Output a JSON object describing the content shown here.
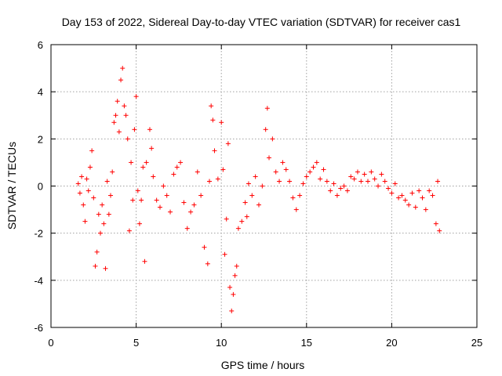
{
  "chart_data": {
    "type": "scatter",
    "title": "Day 153 of 2022, Sidereal Day-to-day VTEC variation (SDTVAR) for receiver cas1",
    "xlabel": "GPS time / hours",
    "ylabel": "SDTVAR / TECUs",
    "xlim": [
      0,
      25
    ],
    "ylim": [
      -6,
      6
    ],
    "x_ticks": [
      0,
      5,
      10,
      15,
      20,
      25
    ],
    "y_ticks": [
      -6,
      -4,
      -2,
      0,
      2,
      4,
      6
    ],
    "x_tick_labels": [
      "0",
      "5",
      "10",
      "15",
      "20",
      "25"
    ],
    "y_tick_labels": [
      "-6",
      "-4",
      "-2",
      "0",
      "2",
      "4",
      "6"
    ],
    "grid": true,
    "marker": "+",
    "color": "#ff0000",
    "series": [
      {
        "name": "SDTVAR",
        "points": [
          [
            1.6,
            0.1
          ],
          [
            1.7,
            -0.3
          ],
          [
            1.8,
            0.4
          ],
          [
            1.9,
            -0.8
          ],
          [
            2.0,
            -1.5
          ],
          [
            2.1,
            0.3
          ],
          [
            2.2,
            -0.2
          ],
          [
            2.3,
            0.8
          ],
          [
            2.4,
            1.5
          ],
          [
            2.5,
            -0.5
          ],
          [
            2.6,
            -3.4
          ],
          [
            2.7,
            -2.8
          ],
          [
            2.8,
            -1.2
          ],
          [
            2.9,
            -2.0
          ],
          [
            3.0,
            -0.8
          ],
          [
            3.1,
            -1.6
          ],
          [
            3.2,
            -3.5
          ],
          [
            3.3,
            0.2
          ],
          [
            3.4,
            -1.2
          ],
          [
            3.5,
            -0.4
          ],
          [
            3.6,
            0.6
          ],
          [
            3.7,
            2.7
          ],
          [
            3.8,
            3.0
          ],
          [
            3.9,
            3.6
          ],
          [
            4.0,
            2.3
          ],
          [
            4.1,
            4.5
          ],
          [
            4.2,
            5.0
          ],
          [
            4.3,
            3.4
          ],
          [
            4.4,
            3.0
          ],
          [
            4.5,
            2.0
          ],
          [
            4.6,
            -1.9
          ],
          [
            4.7,
            1.0
          ],
          [
            4.8,
            -0.6
          ],
          [
            4.9,
            2.4
          ],
          [
            5.0,
            3.8
          ],
          [
            5.1,
            -0.2
          ],
          [
            5.2,
            -1.6
          ],
          [
            5.3,
            -0.6
          ],
          [
            5.4,
            0.8
          ],
          [
            5.5,
            -3.2
          ],
          [
            5.6,
            1.0
          ],
          [
            5.8,
            2.4
          ],
          [
            5.9,
            1.6
          ],
          [
            6.0,
            0.4
          ],
          [
            6.2,
            -0.6
          ],
          [
            6.4,
            -0.9
          ],
          [
            6.6,
            0.0
          ],
          [
            6.8,
            -0.4
          ],
          [
            7.0,
            -1.1
          ],
          [
            7.2,
            0.5
          ],
          [
            7.4,
            0.8
          ],
          [
            7.6,
            1.0
          ],
          [
            7.8,
            -0.7
          ],
          [
            8.0,
            -1.8
          ],
          [
            8.2,
            -1.1
          ],
          [
            8.4,
            -0.8
          ],
          [
            8.6,
            0.6
          ],
          [
            8.8,
            -0.4
          ],
          [
            9.0,
            -2.6
          ],
          [
            9.2,
            -3.3
          ],
          [
            9.3,
            0.2
          ],
          [
            9.4,
            3.4
          ],
          [
            9.5,
            2.8
          ],
          [
            9.6,
            1.5
          ],
          [
            9.8,
            0.3
          ],
          [
            10.0,
            2.7
          ],
          [
            10.1,
            0.7
          ],
          [
            10.2,
            -2.9
          ],
          [
            10.3,
            -1.4
          ],
          [
            10.4,
            1.8
          ],
          [
            10.5,
            -4.3
          ],
          [
            10.6,
            -5.3
          ],
          [
            10.7,
            -4.6
          ],
          [
            10.8,
            -3.8
          ],
          [
            10.9,
            -3.4
          ],
          [
            11.0,
            -1.8
          ],
          [
            11.2,
            -1.5
          ],
          [
            11.4,
            -0.7
          ],
          [
            11.5,
            -1.3
          ],
          [
            11.6,
            0.1
          ],
          [
            11.8,
            -0.4
          ],
          [
            12.0,
            0.4
          ],
          [
            12.2,
            -0.8
          ],
          [
            12.4,
            0.0
          ],
          [
            12.6,
            2.4
          ],
          [
            12.7,
            3.3
          ],
          [
            12.8,
            1.2
          ],
          [
            13.0,
            2.0
          ],
          [
            13.2,
            0.6
          ],
          [
            13.4,
            0.2
          ],
          [
            13.6,
            1.0
          ],
          [
            13.8,
            0.7
          ],
          [
            14.0,
            0.2
          ],
          [
            14.2,
            -0.5
          ],
          [
            14.4,
            -1.0
          ],
          [
            14.6,
            -0.4
          ],
          [
            14.8,
            0.1
          ],
          [
            15.0,
            0.4
          ],
          [
            15.2,
            0.6
          ],
          [
            15.4,
            0.8
          ],
          [
            15.6,
            1.0
          ],
          [
            15.8,
            0.3
          ],
          [
            16.0,
            0.7
          ],
          [
            16.2,
            0.2
          ],
          [
            16.4,
            -0.2
          ],
          [
            16.6,
            0.1
          ],
          [
            16.8,
            -0.4
          ],
          [
            17.0,
            -0.1
          ],
          [
            17.2,
            0.0
          ],
          [
            17.4,
            -0.2
          ],
          [
            17.6,
            0.4
          ],
          [
            17.8,
            0.3
          ],
          [
            18.0,
            0.6
          ],
          [
            18.2,
            0.2
          ],
          [
            18.4,
            0.5
          ],
          [
            18.6,
            0.2
          ],
          [
            18.8,
            0.6
          ],
          [
            19.0,
            0.3
          ],
          [
            19.2,
            0.0
          ],
          [
            19.4,
            0.5
          ],
          [
            19.6,
            0.2
          ],
          [
            19.8,
            -0.1
          ],
          [
            20.0,
            -0.3
          ],
          [
            20.2,
            0.1
          ],
          [
            20.4,
            -0.5
          ],
          [
            20.6,
            -0.4
          ],
          [
            20.8,
            -0.6
          ],
          [
            21.0,
            -0.8
          ],
          [
            21.2,
            -0.3
          ],
          [
            21.4,
            -0.9
          ],
          [
            21.6,
            -0.2
          ],
          [
            21.8,
            -0.5
          ],
          [
            22.0,
            -1.0
          ],
          [
            22.2,
            -0.2
          ],
          [
            22.4,
            -0.4
          ],
          [
            22.6,
            -1.6
          ],
          [
            22.7,
            0.2
          ],
          [
            22.8,
            -1.9
          ]
        ]
      }
    ]
  }
}
